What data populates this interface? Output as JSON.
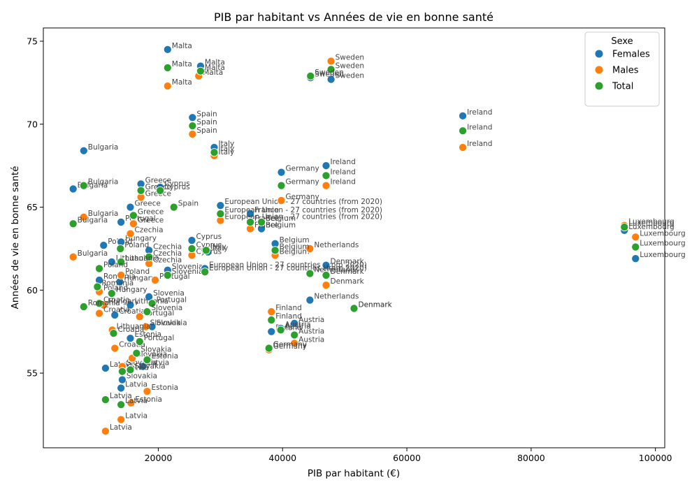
{
  "chart_data": {
    "type": "scatter",
    "title": "PIB par habitant vs Années de vie en bonne santé",
    "xlabel": "PIB par habitant (€)",
    "ylabel": "Années de vie en bonne santé",
    "xlim": [
      1500,
      101500
    ],
    "ylim": [
      50.5,
      75.8
    ],
    "xticks": [
      20000,
      40000,
      60000,
      80000,
      100000
    ],
    "yticks": [
      55,
      60,
      65,
      70,
      75
    ],
    "grid": false,
    "legend": {
      "title": "Sexe",
      "position": "top-right",
      "entries": [
        "Females",
        "Males",
        "Total"
      ]
    },
    "colors": {
      "Females": "#1f77b4",
      "Males": "#ff7f0e",
      "Total": "#2ca02c"
    },
    "series": [
      {
        "name": "Females",
        "points": [
          {
            "x": 21500,
            "y": 74.5,
            "label": "Malta"
          },
          {
            "x": 26800,
            "y": 73.5,
            "label": "Malta"
          },
          {
            "x": 8000,
            "y": 68.4,
            "label": "Bulgaria"
          },
          {
            "x": 25500,
            "y": 70.4,
            "label": "Spain"
          },
          {
            "x": 29000,
            "y": 68.6,
            "label": "Italy"
          },
          {
            "x": 6300,
            "y": 66.1,
            "label": "Bulgaria"
          },
          {
            "x": 17200,
            "y": 66.4,
            "label": "Greece"
          },
          {
            "x": 20300,
            "y": 66.2,
            "label": "Cyprus"
          },
          {
            "x": 15500,
            "y": 65.0,
            "label": "Greece"
          },
          {
            "x": 14000,
            "y": 64.1,
            "label": "Portugal"
          },
          {
            "x": 30000,
            "y": 65.1,
            "label": "European Union - 27 countries (from 2020)"
          },
          {
            "x": 34800,
            "y": 64.6,
            "label": "France"
          },
          {
            "x": 36600,
            "y": 63.7,
            "label": "Belgium"
          },
          {
            "x": 39800,
            "y": 67.1,
            "label": "Germany"
          },
          {
            "x": 47000,
            "y": 67.5,
            "label": "Ireland"
          },
          {
            "x": 47800,
            "y": 72.7,
            "label": "Sweden"
          },
          {
            "x": 44500,
            "y": 72.8,
            "label": "Sweden"
          },
          {
            "x": 69000,
            "y": 70.5,
            "label": "Ireland"
          },
          {
            "x": 25400,
            "y": 63.0,
            "label": "Cyprus"
          },
          {
            "x": 11200,
            "y": 62.7,
            "label": "Poland"
          },
          {
            "x": 14000,
            "y": 62.9,
            "label": "Hungary"
          },
          {
            "x": 18500,
            "y": 62.4,
            "label": "Czechia"
          },
          {
            "x": 28000,
            "y": 62.3,
            "label": "Italy"
          },
          {
            "x": 38800,
            "y": 62.8,
            "label": "Belgium"
          },
          {
            "x": 12500,
            "y": 61.7,
            "label": "Lithuania"
          },
          {
            "x": 21500,
            "y": 61.2,
            "label": "Slovenia"
          },
          {
            "x": 27500,
            "y": 61.3,
            "label": "European Union - 27 countries (from 2020)"
          },
          {
            "x": 47000,
            "y": 61.5,
            "label": "Denmark"
          },
          {
            "x": 10500,
            "y": 60.6,
            "label": "Romania"
          },
          {
            "x": 13800,
            "y": 60.5,
            "label": "Hungary"
          },
          {
            "x": 18500,
            "y": 59.6,
            "label": "Slovenia"
          },
          {
            "x": 15500,
            "y": 59.1,
            "label": "Lithuania"
          },
          {
            "x": 13000,
            "y": 58.5,
            "label": "Croatia"
          },
          {
            "x": 44400,
            "y": 59.4,
            "label": "Netherlands"
          },
          {
            "x": 51500,
            "y": 58.9,
            "label": "Denmark"
          },
          {
            "x": 95000,
            "y": 63.6,
            "label": "Luxembourg"
          },
          {
            "x": 96800,
            "y": 61.9,
            "label": "Luxembourg"
          },
          {
            "x": 19000,
            "y": 57.8,
            "label": "Slovakia"
          },
          {
            "x": 15500,
            "y": 57.1,
            "label": "Estonia"
          },
          {
            "x": 38200,
            "y": 57.5,
            "label": "Finland"
          },
          {
            "x": 41900,
            "y": 58.0,
            "label": "Austria"
          },
          {
            "x": 39700,
            "y": 57.7,
            "label": "Austria"
          },
          {
            "x": 37800,
            "y": 56.5,
            "label": "Germany"
          },
          {
            "x": 11500,
            "y": 55.3,
            "label": "Latvia"
          },
          {
            "x": 17500,
            "y": 55.4,
            "label": "Latvia"
          },
          {
            "x": 14200,
            "y": 54.6,
            "label": "Slovakia"
          },
          {
            "x": 14000,
            "y": 54.1,
            "label": "Latvia"
          }
        ]
      },
      {
        "name": "Males",
        "points": [
          {
            "x": 21500,
            "y": 72.3,
            "label": "Malta"
          },
          {
            "x": 26500,
            "y": 72.9,
            "label": "Malta"
          },
          {
            "x": 47800,
            "y": 73.8,
            "label": "Sweden"
          },
          {
            "x": 25500,
            "y": 69.4,
            "label": "Spain"
          },
          {
            "x": 29000,
            "y": 68.1,
            "label": "Italy"
          },
          {
            "x": 69000,
            "y": 68.6,
            "label": "Ireland"
          },
          {
            "x": 47000,
            "y": 66.3,
            "label": "Ireland"
          },
          {
            "x": 17200,
            "y": 65.6,
            "label": "Greece"
          },
          {
            "x": 8000,
            "y": 64.4,
            "label": "Bulgaria"
          },
          {
            "x": 16000,
            "y": 64.0,
            "label": "Greece"
          },
          {
            "x": 15500,
            "y": 63.4,
            "label": "Czechia"
          },
          {
            "x": 30000,
            "y": 64.2,
            "label": "European Union - 27 countries (from 2020)"
          },
          {
            "x": 34800,
            "y": 63.7,
            "label": "France"
          },
          {
            "x": 39800,
            "y": 65.4,
            "label": "Germany"
          },
          {
            "x": 95000,
            "y": 63.9,
            "label": "Luxembourg"
          },
          {
            "x": 96800,
            "y": 63.2,
            "label": "Luxembourg"
          },
          {
            "x": 6300,
            "y": 62.0,
            "label": "Bulgaria"
          },
          {
            "x": 25400,
            "y": 62.1,
            "label": "Cyprus"
          },
          {
            "x": 38800,
            "y": 62.1,
            "label": "Belgium"
          },
          {
            "x": 44400,
            "y": 62.5,
            "label": "Netherlands"
          },
          {
            "x": 18500,
            "y": 61.6,
            "label": "Czechia"
          },
          {
            "x": 14000,
            "y": 60.9,
            "label": "Poland"
          },
          {
            "x": 19500,
            "y": 60.6,
            "label": "Portugal"
          },
          {
            "x": 47000,
            "y": 60.3,
            "label": "Denmark"
          },
          {
            "x": 10500,
            "y": 59.9,
            "label": "Poland"
          },
          {
            "x": 11200,
            "y": 59.1,
            "label": "Hungary"
          },
          {
            "x": 10500,
            "y": 58.6,
            "label": "Croatia"
          },
          {
            "x": 17000,
            "y": 58.4,
            "label": "Portugal"
          },
          {
            "x": 38200,
            "y": 58.7,
            "label": "Finland"
          },
          {
            "x": 18000,
            "y": 57.8,
            "label": "Slovakia"
          },
          {
            "x": 12600,
            "y": 57.6,
            "label": "Lithuania"
          },
          {
            "x": 13000,
            "y": 56.5,
            "label": "Croatia"
          },
          {
            "x": 37800,
            "y": 56.4,
            "label": "Germany"
          },
          {
            "x": 41900,
            "y": 56.8,
            "label": "Austria"
          },
          {
            "x": 14200,
            "y": 55.4,
            "label": "Slovakia"
          },
          {
            "x": 15800,
            "y": 55.9,
            "label": "Slovakia"
          },
          {
            "x": 18200,
            "y": 53.9,
            "label": "Estonia"
          },
          {
            "x": 15600,
            "y": 53.2,
            "label": "Estonia"
          },
          {
            "x": 14000,
            "y": 52.2,
            "label": "Latvia"
          },
          {
            "x": 11500,
            "y": 51.5,
            "label": "Latvia"
          }
        ]
      },
      {
        "name": "Total",
        "points": [
          {
            "x": 21500,
            "y": 73.4,
            "label": "Malta"
          },
          {
            "x": 26800,
            "y": 73.2,
            "label": "Malta"
          },
          {
            "x": 47800,
            "y": 73.3,
            "label": "Sweden"
          },
          {
            "x": 44500,
            "y": 72.9,
            "label": "Sweden"
          },
          {
            "x": 25500,
            "y": 69.9,
            "label": "Spain"
          },
          {
            "x": 29000,
            "y": 68.3,
            "label": "Italy"
          },
          {
            "x": 69000,
            "y": 69.6,
            "label": "Ireland"
          },
          {
            "x": 47000,
            "y": 66.9,
            "label": "Ireland"
          },
          {
            "x": 39800,
            "y": 66.3,
            "label": "Germany"
          },
          {
            "x": 8000,
            "y": 66.3,
            "label": "Bulgaria"
          },
          {
            "x": 17200,
            "y": 66.0,
            "label": "Greece"
          },
          {
            "x": 20300,
            "y": 66.0,
            "label": "Cyprus"
          },
          {
            "x": 22500,
            "y": 65.0,
            "label": "Spain"
          },
          {
            "x": 16000,
            "y": 64.5,
            "label": "Greece"
          },
          {
            "x": 6300,
            "y": 64.0,
            "label": "Bulgaria"
          },
          {
            "x": 30000,
            "y": 64.6,
            "label": "European Union - 27 countries (from 2020)"
          },
          {
            "x": 34800,
            "y": 64.1,
            "label": "France"
          },
          {
            "x": 36600,
            "y": 64.1,
            "label": "Belgium"
          },
          {
            "x": 95000,
            "y": 63.8,
            "label": "Luxembourg"
          },
          {
            "x": 96800,
            "y": 62.6,
            "label": "Luxembourg"
          },
          {
            "x": 25400,
            "y": 62.5,
            "label": "Cyprus"
          },
          {
            "x": 27700,
            "y": 62.4,
            "label": "Italy"
          },
          {
            "x": 13900,
            "y": 62.5,
            "label": "Poland"
          },
          {
            "x": 18500,
            "y": 62.0,
            "label": "Czechia"
          },
          {
            "x": 38800,
            "y": 62.4,
            "label": "Belgium"
          },
          {
            "x": 14000,
            "y": 61.7,
            "label": "Lithuania"
          },
          {
            "x": 10500,
            "y": 61.3,
            "label": "Poland"
          },
          {
            "x": 21500,
            "y": 60.9,
            "label": "Slovenia"
          },
          {
            "x": 27500,
            "y": 61.1,
            "label": "European Union - 27 countries (from 2020)"
          },
          {
            "x": 44400,
            "y": 61.0,
            "label": "Netherlands"
          },
          {
            "x": 47000,
            "y": 60.9,
            "label": "Denmark"
          },
          {
            "x": 10200,
            "y": 60.2,
            "label": "Romania"
          },
          {
            "x": 12500,
            "y": 59.8,
            "label": "Hungary"
          },
          {
            "x": 10500,
            "y": 59.2,
            "label": "Croatia"
          },
          {
            "x": 19000,
            "y": 59.2,
            "label": "Portugal"
          },
          {
            "x": 8000,
            "y": 59.0,
            "label": "Romania"
          },
          {
            "x": 18200,
            "y": 58.7,
            "label": "Slovenia"
          },
          {
            "x": 51500,
            "y": 58.9,
            "label": "Denmark"
          },
          {
            "x": 38200,
            "y": 58.2,
            "label": "Finland"
          },
          {
            "x": 39700,
            "y": 57.6,
            "label": "Austria"
          },
          {
            "x": 12800,
            "y": 57.4,
            "label": "Croatia"
          },
          {
            "x": 17000,
            "y": 56.9,
            "label": "Portugal"
          },
          {
            "x": 41900,
            "y": 57.3,
            "label": "Austria"
          },
          {
            "x": 16500,
            "y": 56.2,
            "label": "Slovakia"
          },
          {
            "x": 37800,
            "y": 56.5,
            "label": "Germany"
          },
          {
            "x": 18200,
            "y": 55.8,
            "label": "Estonia"
          },
          {
            "x": 14200,
            "y": 55.1,
            "label": "Latvia"
          },
          {
            "x": 15500,
            "y": 55.2,
            "label": "Slovakia"
          },
          {
            "x": 11500,
            "y": 53.4,
            "label": "Latvia"
          },
          {
            "x": 14000,
            "y": 53.1,
            "label": "Latvia"
          }
        ]
      }
    ]
  }
}
